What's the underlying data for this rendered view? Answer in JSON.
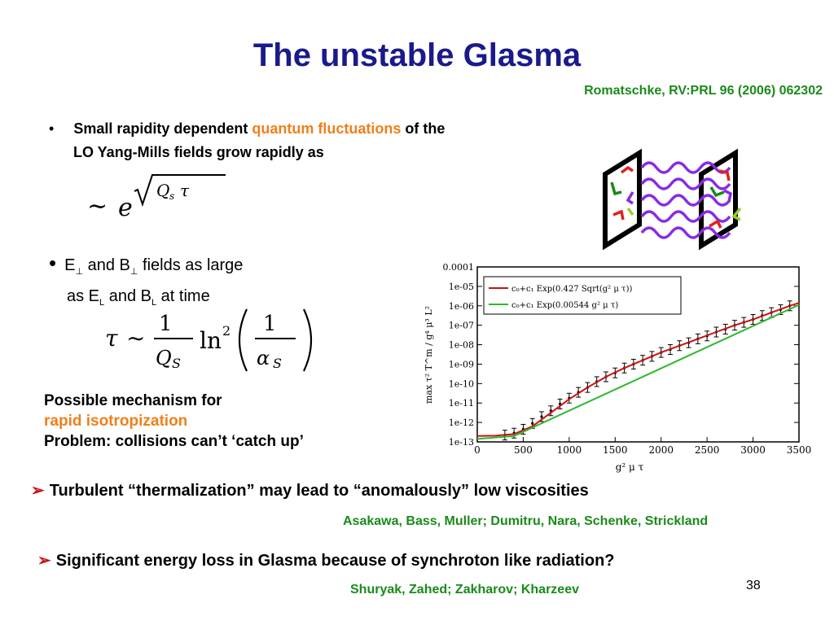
{
  "slide": {
    "title": "The unstable Glasma",
    "ref_top": "Romatschke, RV:PRL 96 (2006) 062302",
    "bullet1": {
      "marker": "•",
      "pre": "Small rapidity dependent ",
      "highlight": "quantum fluctuations",
      "post": " of the",
      "line2": "LO Yang-Mills fields grow rapidly as"
    },
    "bullet2": {
      "marker": "•",
      "e": "E",
      "perp": "⊥",
      "and_b": " and B",
      "fields": " fields as large",
      "as_e": "as E",
      "sub_l": "L",
      "and_b2": " and B",
      "at_time": " at time"
    },
    "mechanism": {
      "line1": "Possible mechanism for",
      "line2": "rapid isotropization",
      "line3": "Problem: collisions can’t ‘catch up’"
    },
    "point1": "Turbulent “thermalization” may lead to “anomalously” low viscosities",
    "ref_mid": "Asakawa, Bass, Muller; Dumitru, Nara, Schenke, Strickland",
    "point2": "Significant energy loss in Glasma because of synchroton like radiation?",
    "ref_bottom": "Shuryak, Zahed; Zakharov; Kharzeev",
    "page": "38",
    "colors": {
      "title": "#1a1a8c",
      "ref": "#1a8a1a",
      "highlight": "#f07f1a",
      "arrow": "#cc1111"
    }
  },
  "chart_data": {
    "type": "line",
    "xlim": [
      0,
      3500
    ],
    "ylim_log10": [
      -13,
      -4
    ],
    "xticks": [
      "0",
      "500",
      "1000",
      "1500",
      "2000",
      "2500",
      "3000",
      "3500"
    ],
    "yticks": [
      "1e-13",
      "1e-12",
      "1e-11",
      "1e-10",
      "1e-09",
      "1e-08",
      "1e-07",
      "1e-06",
      "1e-05",
      "0.0001"
    ],
    "xlabel": "g² μ τ",
    "ylabel": "max τ² T^m / g⁴ μ³ L²",
    "legend_pos": "top-left",
    "series": [
      {
        "name": "c₀+c₁ Exp(0.427 Sqrt(g² μ τ))",
        "color": "#cc1111",
        "x": [
          0,
          200,
          400,
          600,
          800,
          1000,
          1200,
          1400,
          1600,
          1800,
          2000,
          2200,
          2400,
          2600,
          2800,
          3000,
          3200,
          3400,
          3500
        ],
        "log10y": [
          -12.7,
          -12.68,
          -12.6,
          -12.2,
          -11.5,
          -10.8,
          -10.2,
          -9.65,
          -9.2,
          -8.8,
          -8.4,
          -8.05,
          -7.7,
          -7.35,
          -7.0,
          -6.7,
          -6.35,
          -6.0,
          -5.85
        ]
      },
      {
        "name": "c₀+c₁ Exp(0.00544 g² μ τ)",
        "color": "#2eb82e",
        "x": [
          0,
          400,
          3500
        ],
        "log10y": [
          -12.85,
          -12.7,
          -5.95
        ]
      }
    ],
    "data_points": {
      "x": [
        300,
        400,
        500,
        600,
        700,
        800,
        900,
        1000,
        1100,
        1200,
        1300,
        1400,
        1500,
        1600,
        1700,
        1800,
        1900,
        2000,
        2100,
        2200,
        2300,
        2400,
        2500,
        2600,
        2700,
        2800,
        2900,
        3000,
        3100,
        3200,
        3300,
        3400
      ],
      "log10y": [
        -12.65,
        -12.55,
        -12.35,
        -12.05,
        -11.7,
        -11.4,
        -11.05,
        -10.75,
        -10.45,
        -10.2,
        -9.9,
        -9.65,
        -9.45,
        -9.2,
        -9.0,
        -8.8,
        -8.6,
        -8.4,
        -8.25,
        -8.05,
        -7.9,
        -7.7,
        -7.55,
        -7.35,
        -7.2,
        -7.0,
        -6.85,
        -6.7,
        -6.5,
        -6.35,
        -6.2,
        -6.0
      ]
    }
  }
}
